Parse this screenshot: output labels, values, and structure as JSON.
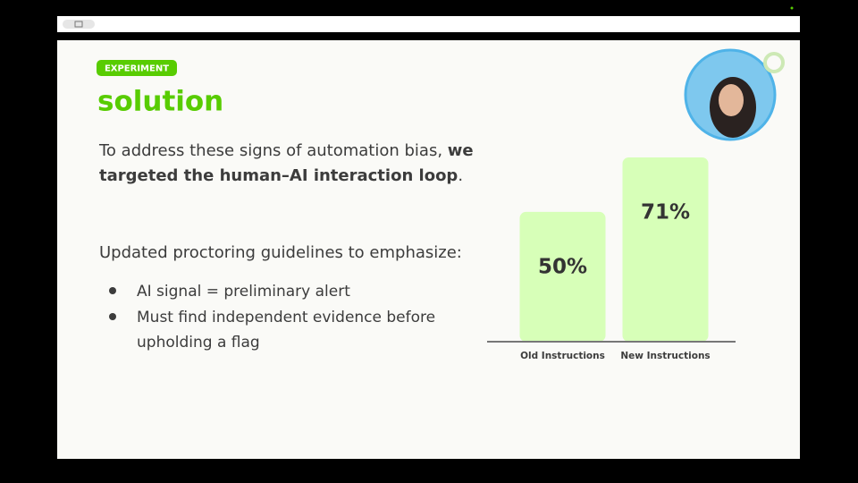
{
  "slide": {
    "tag": "EXPERIMENT",
    "title": "solution",
    "intro": [
      "To address these signs of automation bias, ",
      "we",
      "targeted the human–AI interaction loop",
      "."
    ],
    "lead": "Updated proctoring guidelines to emphasize:",
    "bullets": [
      [
        "AI signal = preliminary alert"
      ],
      [
        "Must find independent evidence before",
        "upholding a flag"
      ]
    ]
  },
  "chart_data": {
    "type": "bar",
    "categories": [
      "Old Instructions",
      "New Instructions"
    ],
    "values": [
      50,
      71
    ],
    "value_labels": [
      "50%",
      "71%"
    ],
    "color": "#d7ffb8"
  }
}
